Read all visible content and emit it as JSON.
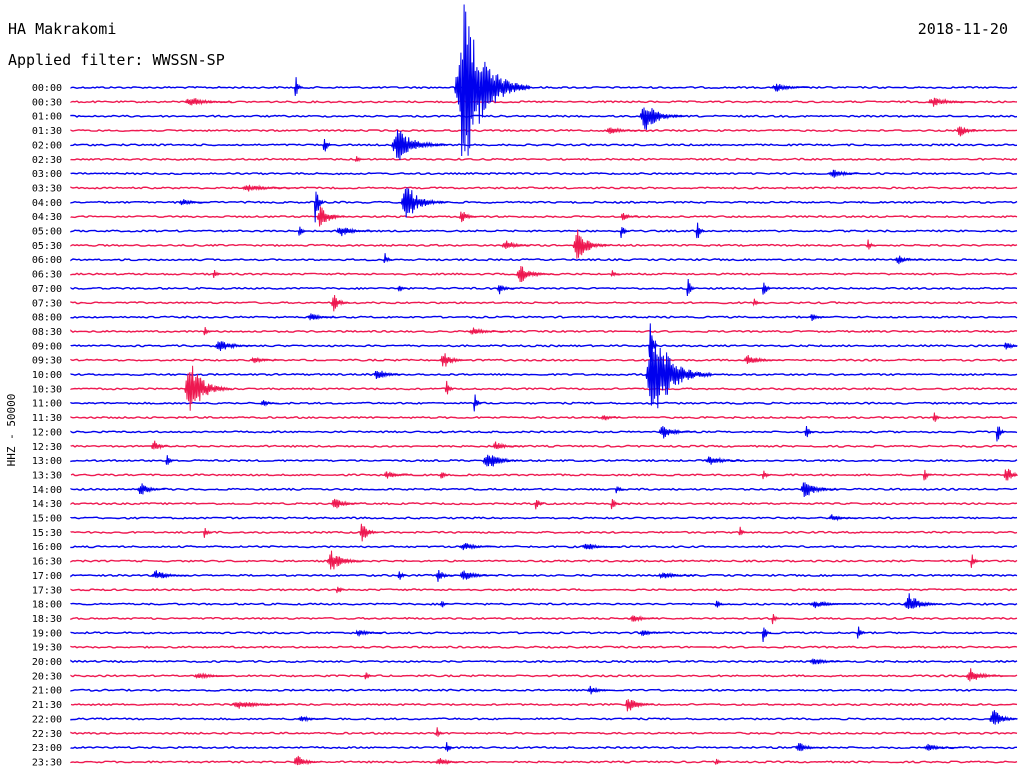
{
  "header": {
    "station": "HA Makrakomi",
    "filter": "Applied filter: WWSSN-SP",
    "date": "2018-11-20"
  },
  "colors": {
    "even": "#0000ee",
    "odd": "#ee1850"
  },
  "chart_data": {
    "type": "line",
    "title": "HA Makrakomi",
    "subtitle": "Applied filter: WWSSN-SP",
    "date": "2018-11-20",
    "ylabel": "HHZ - 50000",
    "xlabel": "",
    "grid": false,
    "legend": "none",
    "row_labels": [
      "00:00",
      "00:30",
      "01:00",
      "01:30",
      "02:00",
      "02:30",
      "03:00",
      "03:30",
      "04:00",
      "04:30",
      "05:00",
      "05:30",
      "06:00",
      "06:30",
      "07:00",
      "07:30",
      "08:00",
      "08:30",
      "09:00",
      "09:30",
      "10:00",
      "10:30",
      "11:00",
      "11:30",
      "12:00",
      "12:30",
      "13:00",
      "13:30",
      "14:00",
      "14:30",
      "15:00",
      "15:30",
      "16:00",
      "16:30",
      "17:00",
      "17:30",
      "18:00",
      "18:30",
      "19:00",
      "19:30",
      "20:00",
      "20:30",
      "21:00",
      "21:30",
      "22:00",
      "22:30",
      "23:00",
      "23:30"
    ],
    "minutes_per_row": 30,
    "events": [
      {
        "row": 0,
        "t": 0.405,
        "amp": 88,
        "dur": 0.08
      },
      {
        "row": 0,
        "t": 0.236,
        "amp": 14,
        "dur": 0.01
      },
      {
        "row": 0,
        "t": 0.74,
        "amp": 5,
        "dur": 0.04
      },
      {
        "row": 1,
        "t": 0.12,
        "amp": 6,
        "dur": 0.05
      },
      {
        "row": 1,
        "t": 0.905,
        "amp": 5,
        "dur": 0.05
      },
      {
        "row": 2,
        "t": 0.6,
        "amp": 16,
        "dur": 0.05
      },
      {
        "row": 3,
        "t": 0.935,
        "amp": 7,
        "dur": 0.03
      },
      {
        "row": 3,
        "t": 0.565,
        "amp": 4,
        "dur": 0.04
      },
      {
        "row": 4,
        "t": 0.338,
        "amp": 18,
        "dur": 0.06
      },
      {
        "row": 4,
        "t": 0.266,
        "amp": 14,
        "dur": 0.01
      },
      {
        "row": 5,
        "t": 0.3,
        "amp": 5,
        "dur": 0.01
      },
      {
        "row": 6,
        "t": 0.8,
        "amp": 5,
        "dur": 0.04
      },
      {
        "row": 7,
        "t": 0.18,
        "amp": 4,
        "dur": 0.06
      },
      {
        "row": 8,
        "t": 0.348,
        "amp": 20,
        "dur": 0.05
      },
      {
        "row": 8,
        "t": 0.257,
        "amp": 30,
        "dur": 0.01
      },
      {
        "row": 8,
        "t": 0.114,
        "amp": 4,
        "dur": 0.03
      },
      {
        "row": 9,
        "t": 0.26,
        "amp": 16,
        "dur": 0.03
      },
      {
        "row": 9,
        "t": 0.41,
        "amp": 8,
        "dur": 0.02
      },
      {
        "row": 9,
        "t": 0.58,
        "amp": 5,
        "dur": 0.02
      },
      {
        "row": 10,
        "t": 0.28,
        "amp": 6,
        "dur": 0.04
      },
      {
        "row": 10,
        "t": 0.66,
        "amp": 14,
        "dur": 0.01
      },
      {
        "row": 10,
        "t": 0.58,
        "amp": 10,
        "dur": 0.01
      },
      {
        "row": 10,
        "t": 0.24,
        "amp": 8,
        "dur": 0.01
      },
      {
        "row": 11,
        "t": 0.53,
        "amp": 18,
        "dur": 0.04
      },
      {
        "row": 11,
        "t": 0.455,
        "amp": 8,
        "dur": 0.03
      },
      {
        "row": 11,
        "t": 0.84,
        "amp": 8,
        "dur": 0.01
      },
      {
        "row": 12,
        "t": 0.33,
        "amp": 8,
        "dur": 0.01
      },
      {
        "row": 12,
        "t": 0.87,
        "amp": 5,
        "dur": 0.03
      },
      {
        "row": 13,
        "t": 0.47,
        "amp": 10,
        "dur": 0.04
      },
      {
        "row": 13,
        "t": 0.57,
        "amp": 8,
        "dur": 0.01
      },
      {
        "row": 13,
        "t": 0.15,
        "amp": 6,
        "dur": 0.01
      },
      {
        "row": 14,
        "t": 0.345,
        "amp": 6,
        "dur": 0.01
      },
      {
        "row": 14,
        "t": 0.65,
        "amp": 14,
        "dur": 0.01
      },
      {
        "row": 14,
        "t": 0.45,
        "amp": 6,
        "dur": 0.02
      },
      {
        "row": 14,
        "t": 0.73,
        "amp": 16,
        "dur": 0.01
      },
      {
        "row": 15,
        "t": 0.275,
        "amp": 10,
        "dur": 0.02
      },
      {
        "row": 15,
        "t": 0.72,
        "amp": 6,
        "dur": 0.01
      },
      {
        "row": 16,
        "t": 0.25,
        "amp": 5,
        "dur": 0.03
      },
      {
        "row": 16,
        "t": 0.78,
        "amp": 4,
        "dur": 0.02
      },
      {
        "row": 17,
        "t": 0.42,
        "amp": 4,
        "dur": 0.04
      },
      {
        "row": 17,
        "t": 0.14,
        "amp": 6,
        "dur": 0.01
      },
      {
        "row": 18,
        "t": 0.152,
        "amp": 8,
        "dur": 0.04
      },
      {
        "row": 18,
        "t": 0.61,
        "amp": 30,
        "dur": 0.01
      },
      {
        "row": 18,
        "t": 0.985,
        "amp": 5,
        "dur": 0.02
      },
      {
        "row": 19,
        "t": 0.39,
        "amp": 9,
        "dur": 0.03
      },
      {
        "row": 19,
        "t": 0.71,
        "amp": 6,
        "dur": 0.04
      },
      {
        "row": 19,
        "t": 0.19,
        "amp": 4,
        "dur": 0.03
      },
      {
        "row": 20,
        "t": 0.607,
        "amp": 50,
        "dur": 0.07
      },
      {
        "row": 20,
        "t": 0.32,
        "amp": 8,
        "dur": 0.03
      },
      {
        "row": 21,
        "t": 0.12,
        "amp": 30,
        "dur": 0.05
      },
      {
        "row": 21,
        "t": 0.395,
        "amp": 12,
        "dur": 0.01
      },
      {
        "row": 22,
        "t": 0.425,
        "amp": 12,
        "dur": 0.01
      },
      {
        "row": 22,
        "t": 0.2,
        "amp": 4,
        "dur": 0.02
      },
      {
        "row": 23,
        "t": 0.91,
        "amp": 8,
        "dur": 0.01
      },
      {
        "row": 23,
        "t": 0.56,
        "amp": 4,
        "dur": 0.02
      },
      {
        "row": 24,
        "t": 0.62,
        "amp": 8,
        "dur": 0.04
      },
      {
        "row": 24,
        "t": 0.775,
        "amp": 10,
        "dur": 0.01
      },
      {
        "row": 24,
        "t": 0.977,
        "amp": 14,
        "dur": 0.01
      },
      {
        "row": 25,
        "t": 0.085,
        "amp": 8,
        "dur": 0.02
      },
      {
        "row": 25,
        "t": 0.445,
        "amp": 5,
        "dur": 0.03
      },
      {
        "row": 26,
        "t": 0.435,
        "amp": 12,
        "dur": 0.04
      },
      {
        "row": 26,
        "t": 0.1,
        "amp": 8,
        "dur": 0.01
      },
      {
        "row": 26,
        "t": 0.67,
        "amp": 6,
        "dur": 0.04
      },
      {
        "row": 27,
        "t": 0.33,
        "amp": 5,
        "dur": 0.03
      },
      {
        "row": 27,
        "t": 0.39,
        "amp": 6,
        "dur": 0.01
      },
      {
        "row": 27,
        "t": 0.73,
        "amp": 6,
        "dur": 0.01
      },
      {
        "row": 27,
        "t": 0.9,
        "amp": 8,
        "dur": 0.01
      },
      {
        "row": 27,
        "t": 0.985,
        "amp": 12,
        "dur": 0.02
      },
      {
        "row": 28,
        "t": 0.07,
        "amp": 8,
        "dur": 0.03
      },
      {
        "row": 28,
        "t": 0.77,
        "amp": 10,
        "dur": 0.04
      },
      {
        "row": 28,
        "t": 0.575,
        "amp": 6,
        "dur": 0.01
      },
      {
        "row": 29,
        "t": 0.275,
        "amp": 8,
        "dur": 0.03
      },
      {
        "row": 29,
        "t": 0.49,
        "amp": 10,
        "dur": 0.01
      },
      {
        "row": 29,
        "t": 0.57,
        "amp": 12,
        "dur": 0.01
      },
      {
        "row": 30,
        "t": 0.8,
        "amp": 4,
        "dur": 0.03
      },
      {
        "row": 31,
        "t": 0.305,
        "amp": 14,
        "dur": 0.02
      },
      {
        "row": 31,
        "t": 0.14,
        "amp": 8,
        "dur": 0.01
      },
      {
        "row": 31,
        "t": 0.705,
        "amp": 8,
        "dur": 0.01
      },
      {
        "row": 32,
        "t": 0.41,
        "amp": 5,
        "dur": 0.04
      },
      {
        "row": 32,
        "t": 0.54,
        "amp": 4,
        "dur": 0.04
      },
      {
        "row": 33,
        "t": 0.27,
        "amp": 12,
        "dur": 0.04
      },
      {
        "row": 33,
        "t": 0.95,
        "amp": 10,
        "dur": 0.01
      },
      {
        "row": 34,
        "t": 0.085,
        "amp": 6,
        "dur": 0.04
      },
      {
        "row": 34,
        "t": 0.345,
        "amp": 10,
        "dur": 0.01
      },
      {
        "row": 34,
        "t": 0.385,
        "amp": 8,
        "dur": 0.02
      },
      {
        "row": 34,
        "t": 0.41,
        "amp": 6,
        "dur": 0.04
      },
      {
        "row": 34,
        "t": 0.62,
        "amp": 4,
        "dur": 0.04
      },
      {
        "row": 35,
        "t": 0.28,
        "amp": 8,
        "dur": 0.01
      },
      {
        "row": 36,
        "t": 0.88,
        "amp": 12,
        "dur": 0.04
      },
      {
        "row": 36,
        "t": 0.68,
        "amp": 8,
        "dur": 0.01
      },
      {
        "row": 36,
        "t": 0.78,
        "amp": 4,
        "dur": 0.05
      },
      {
        "row": 36,
        "t": 0.39,
        "amp": 6,
        "dur": 0.01
      },
      {
        "row": 37,
        "t": 0.59,
        "amp": 5,
        "dur": 0.03
      },
      {
        "row": 37,
        "t": 0.74,
        "amp": 8,
        "dur": 0.01
      },
      {
        "row": 38,
        "t": 0.3,
        "amp": 4,
        "dur": 0.03
      },
      {
        "row": 38,
        "t": 0.6,
        "amp": 4,
        "dur": 0.03
      },
      {
        "row": 38,
        "t": 0.73,
        "amp": 14,
        "dur": 0.01
      },
      {
        "row": 38,
        "t": 0.83,
        "amp": 10,
        "dur": 0.01
      },
      {
        "row": 40,
        "t": 0.78,
        "amp": 4,
        "dur": 0.04
      },
      {
        "row": 41,
        "t": 0.945,
        "amp": 8,
        "dur": 0.04
      },
      {
        "row": 41,
        "t": 0.13,
        "amp": 4,
        "dur": 0.04
      },
      {
        "row": 41,
        "t": 0.31,
        "amp": 5,
        "dur": 0.01
      },
      {
        "row": 42,
        "t": 0.545,
        "amp": 5,
        "dur": 0.03
      },
      {
        "row": 43,
        "t": 0.585,
        "amp": 10,
        "dur": 0.03
      },
      {
        "row": 43,
        "t": 0.17,
        "amp": 5,
        "dur": 0.06
      },
      {
        "row": 44,
        "t": 0.97,
        "amp": 12,
        "dur": 0.03
      },
      {
        "row": 44,
        "t": 0.24,
        "amp": 4,
        "dur": 0.03
      },
      {
        "row": 45,
        "t": 0.385,
        "amp": 8,
        "dur": 0.01
      },
      {
        "row": 46,
        "t": 0.395,
        "amp": 10,
        "dur": 0.01
      },
      {
        "row": 46,
        "t": 0.765,
        "amp": 6,
        "dur": 0.03
      },
      {
        "row": 46,
        "t": 0.9,
        "amp": 4,
        "dur": 0.04
      },
      {
        "row": 47,
        "t": 0.235,
        "amp": 8,
        "dur": 0.03
      },
      {
        "row": 47,
        "t": 0.385,
        "amp": 5,
        "dur": 0.03
      },
      {
        "row": 47,
        "t": 0.68,
        "amp": 5,
        "dur": 0.01
      }
    ]
  }
}
